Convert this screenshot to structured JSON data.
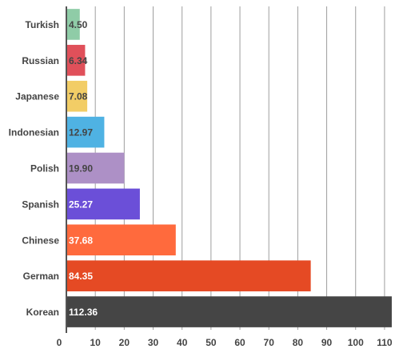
{
  "chart_data": {
    "type": "bar",
    "orientation": "horizontal",
    "title": "",
    "xlabel": "",
    "ylabel": "",
    "categories": [
      "Turkish",
      "Russian",
      "Japanese",
      "Indonesian",
      "Polish",
      "Spanish",
      "Chinese",
      "German",
      "Korean"
    ],
    "values": [
      4.5,
      6.34,
      7.08,
      12.97,
      19.9,
      25.27,
      37.68,
      84.35,
      112.36
    ],
    "value_labels": [
      "4.50",
      "6.34",
      "7.08",
      "12.97",
      "19.90",
      "25.27",
      "37.68",
      "84.35",
      "112.36"
    ],
    "colors": [
      "#8fcca7",
      "#e0505a",
      "#f2cd66",
      "#4fb2e3",
      "#ad90c6",
      "#6b4fd8",
      "#ff6a3d",
      "#e54a24",
      "#454545"
    ],
    "label_colors": [
      "#444444",
      "#444444",
      "#444444",
      "#444444",
      "#444444",
      "#ffffff",
      "#ffffff",
      "#ffffff",
      "#ffffff"
    ],
    "xlim": [
      0,
      115
    ],
    "xticks": [
      0,
      10,
      20,
      30,
      40,
      50,
      60,
      70,
      80,
      90,
      100,
      110
    ],
    "grid": true,
    "legend": "none"
  }
}
